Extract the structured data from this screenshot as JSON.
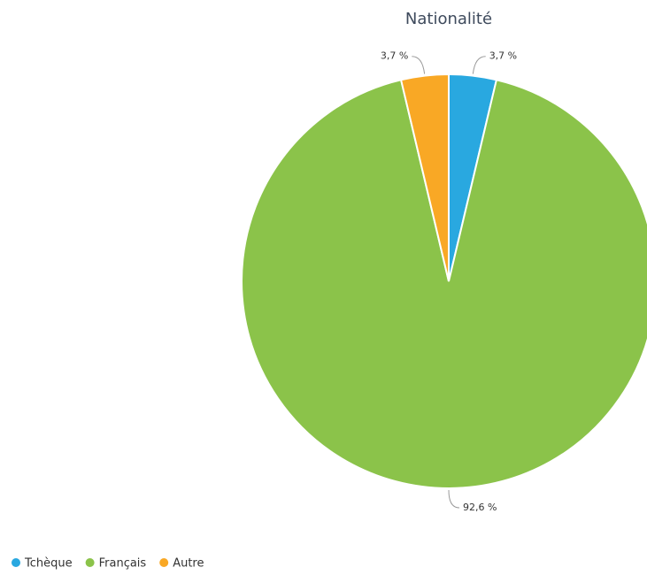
{
  "chart_data": {
    "type": "pie",
    "title": "Nationalité",
    "categories": [
      "Tchèque",
      "Français",
      "Autre"
    ],
    "values": [
      3.7,
      92.6,
      3.7
    ],
    "value_labels": [
      "3,7 %",
      "92,6 %",
      "3,7 %"
    ],
    "colors": [
      "#29a8e0",
      "#8bc34a",
      "#f9a825"
    ],
    "legend": "bottom-left"
  }
}
